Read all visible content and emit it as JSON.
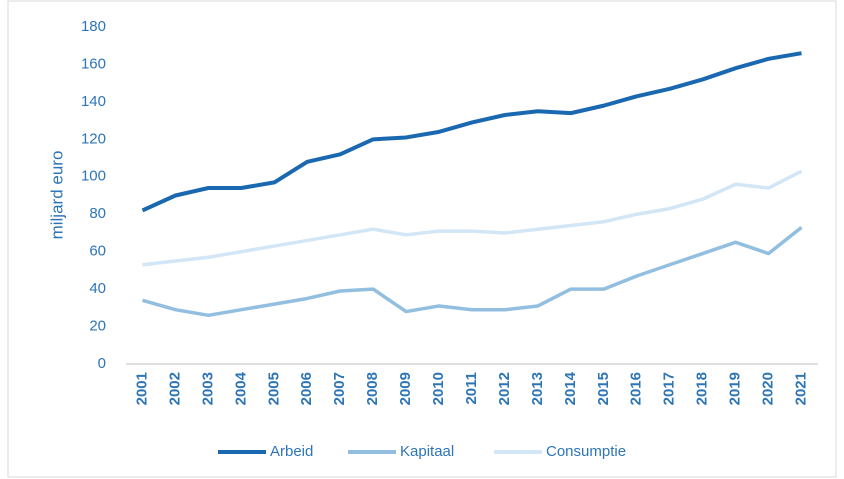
{
  "chart_data": {
    "type": "line",
    "ylabel": "miljard euro",
    "categories": [
      "2001",
      "2002",
      "2003",
      "2004",
      "2005",
      "2006",
      "2007",
      "2008",
      "2009",
      "2010",
      "2011",
      "2012",
      "2013",
      "2014",
      "2015",
      "2016",
      "2017",
      "2018",
      "2019",
      "2020",
      "2021"
    ],
    "series": [
      {
        "name": "Arbeid",
        "color": "#1a68b0",
        "values": [
          82,
          90,
          94,
          94,
          97,
          108,
          112,
          120,
          121,
          124,
          129,
          133,
          135,
          134,
          138,
          143,
          147,
          152,
          158,
          163,
          166
        ]
      },
      {
        "name": "Kapitaal",
        "color": "#92bfe0",
        "values": [
          34,
          29,
          26,
          29,
          32,
          35,
          39,
          40,
          28,
          31,
          29,
          29,
          31,
          40,
          40,
          47,
          53,
          59,
          65,
          59,
          73
        ]
      },
      {
        "name": "Consumptie",
        "color": "#d3e6f5",
        "values": [
          53,
          55,
          57,
          60,
          63,
          66,
          69,
          72,
          69,
          71,
          71,
          70,
          72,
          74,
          76,
          80,
          83,
          88,
          96,
          94,
          103
        ]
      }
    ],
    "ylim": [
      0,
      180
    ],
    "yticks": [
      0,
      20,
      40,
      60,
      80,
      100,
      120,
      140,
      160,
      180
    ],
    "grid": false
  }
}
